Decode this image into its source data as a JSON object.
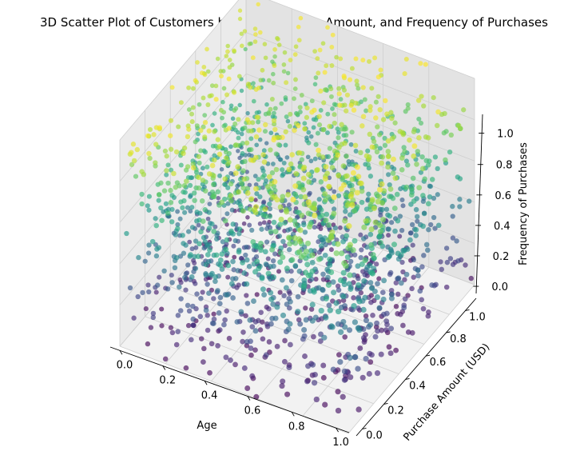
{
  "chart_data": {
    "type": "scatter3d",
    "title": "3D Scatter Plot of Customers by Age, Purchase Amount, and Frequency of Purchases",
    "xlabel": "Age",
    "ylabel": "Purchase Amount (USD)",
    "zlabel": "Frequency of Purchases",
    "xlim": [
      0,
      1
    ],
    "ylim": [
      0,
      1
    ],
    "zlim": [
      0,
      1
    ],
    "xticks": [
      "0.0",
      "0.2",
      "0.4",
      "0.6",
      "0.8",
      "1.0"
    ],
    "yticks": [
      "0.0",
      "0.2",
      "0.4",
      "0.6",
      "0.8",
      "1.0"
    ],
    "zticks": [
      "0.0",
      "0.2",
      "0.4",
      "0.6",
      "0.8",
      "1.0"
    ],
    "colormap": "viridis",
    "color_by": "Frequency of Purchases",
    "point_count": 2000,
    "distribution": "uniform random in [0,1] on all three axes",
    "grid": true,
    "colors": {
      "pane_left": "#ebebeb",
      "pane_right": "#e3e3e3",
      "pane_floor": "#f2f2f2",
      "grid": "#cfcfcf"
    }
  }
}
